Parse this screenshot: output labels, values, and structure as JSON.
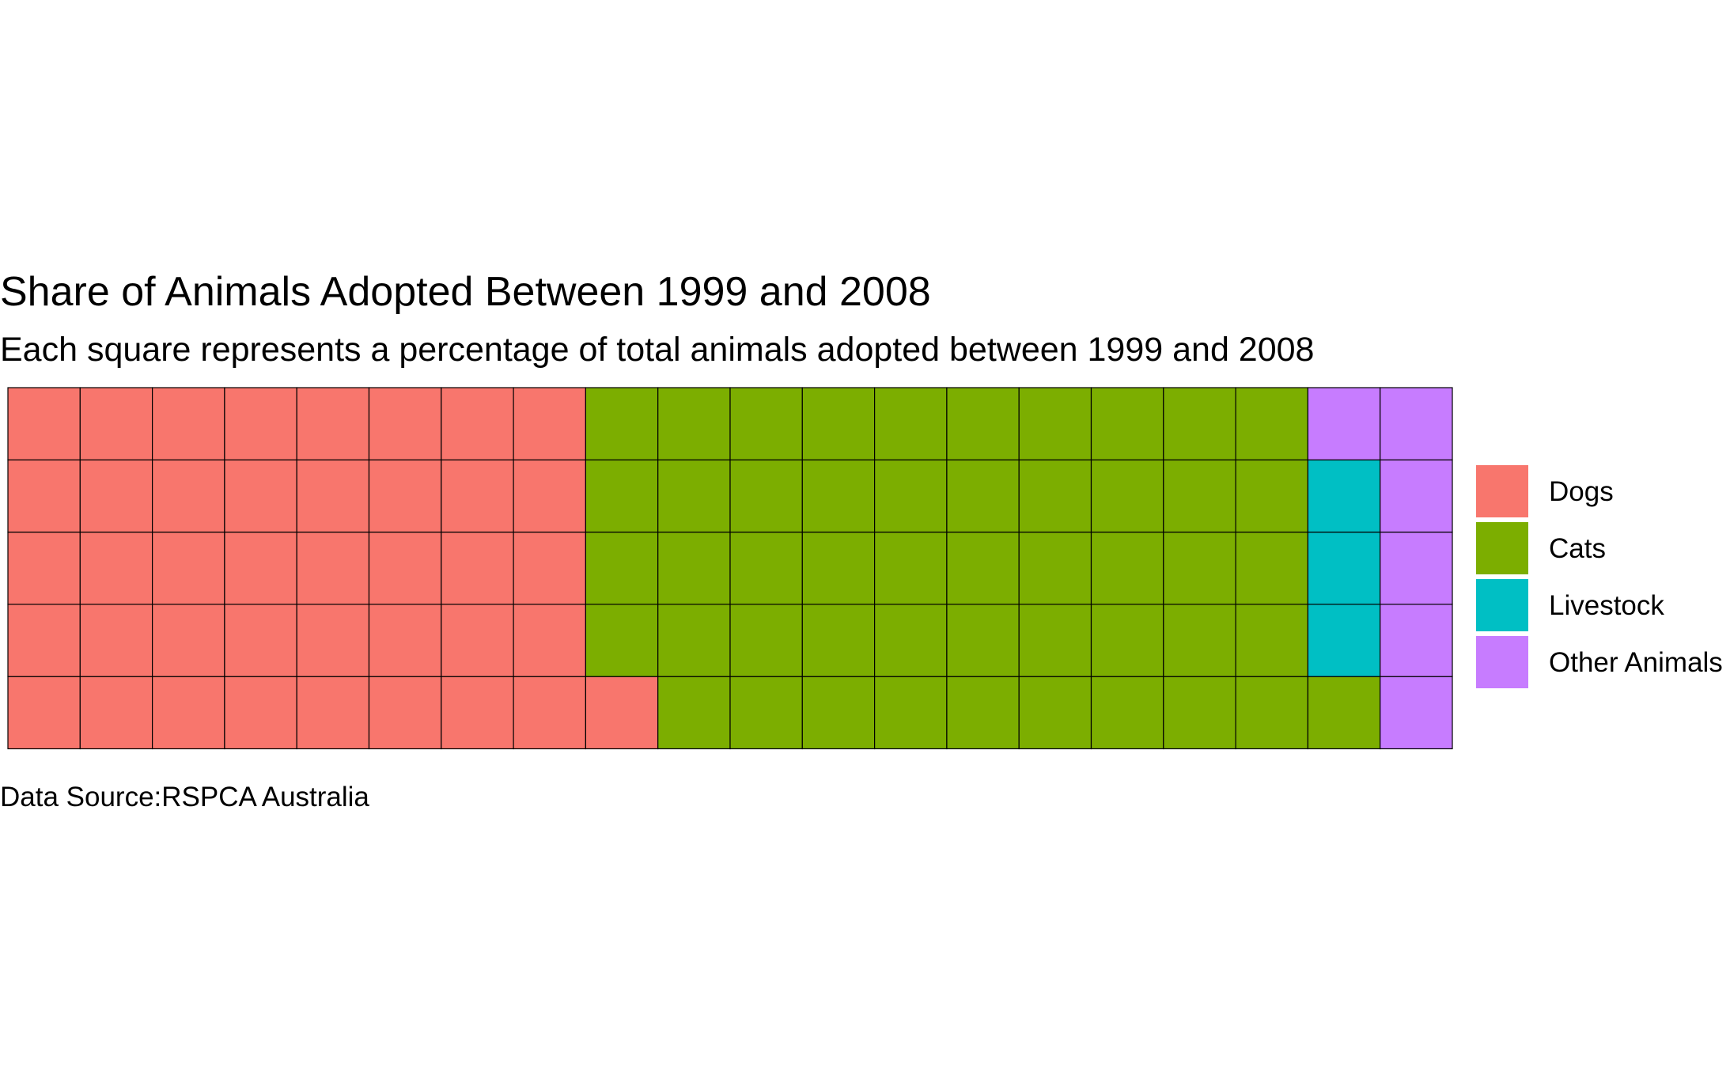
{
  "chart_data": {
    "type": "waffle",
    "title": "Share of Animals Adopted Between 1999 and 2008",
    "subtitle": "Each square represents a percentage of total animals adopted between 1999 and 2008",
    "caption": "Data Source:RSPCA Australia",
    "grid": {
      "rows": 5,
      "columns": 20,
      "total_squares": 100
    },
    "categories": [
      "Dogs",
      "Cats",
      "Livestock",
      "Other Animals"
    ],
    "values": [
      41,
      50,
      3,
      6
    ],
    "colors": [
      "#F8766D",
      "#7CAE00",
      "#00BFC4",
      "#C77CFF"
    ],
    "legend": {
      "position": "right",
      "entries": [
        {
          "label": "Dogs",
          "color": "#F8766D"
        },
        {
          "label": "Cats",
          "color": "#7CAE00"
        },
        {
          "label": "Livestock",
          "color": "#00BFC4"
        },
        {
          "label": "Other Animals",
          "color": "#C77CFF"
        }
      ]
    },
    "fill_order": "column-major from bottom-left, upward"
  }
}
